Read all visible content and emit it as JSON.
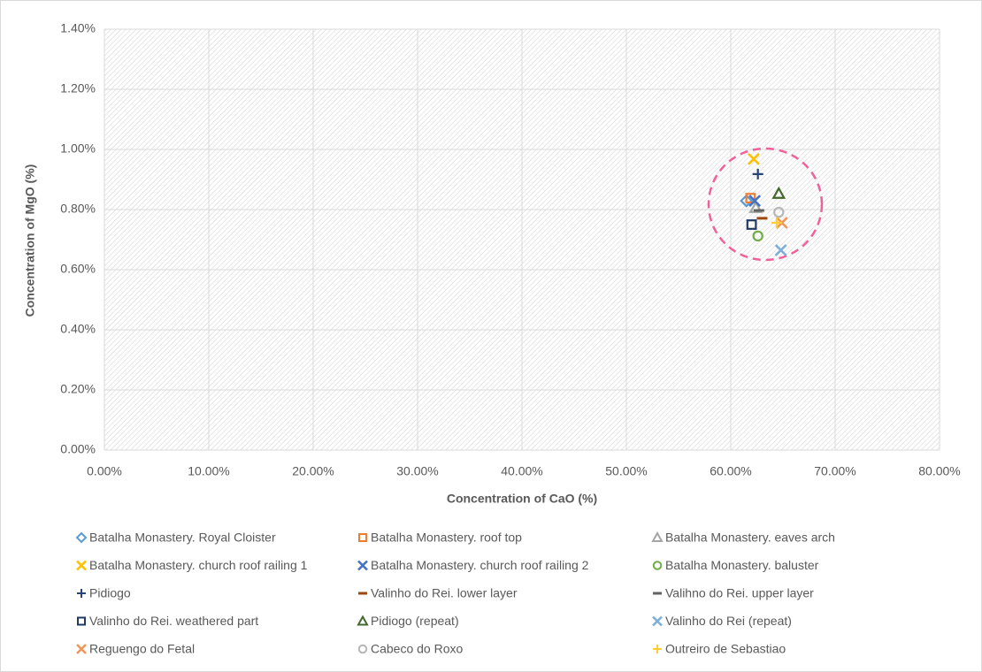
{
  "chart_data": {
    "type": "scatter",
    "xlabel": "Concentration of CaO (%)",
    "ylabel": "Concentration of MgO (%)",
    "xlim": [
      0,
      80
    ],
    "ylim": [
      0,
      1.4
    ],
    "xticks": [
      {
        "value": 0,
        "label": "0.00%"
      },
      {
        "value": 10,
        "label": "10.00%"
      },
      {
        "value": 20,
        "label": "20.00%"
      },
      {
        "value": 30,
        "label": "30.00%"
      },
      {
        "value": 40,
        "label": "40.00%"
      },
      {
        "value": 50,
        "label": "50.00%"
      },
      {
        "value": 60,
        "label": "60.00%"
      },
      {
        "value": 70,
        "label": "70.00%"
      },
      {
        "value": 80,
        "label": "80.00%"
      }
    ],
    "yticks": [
      {
        "value": 0,
        "label": "0.00%"
      },
      {
        "value": 0.2,
        "label": "0.20%"
      },
      {
        "value": 0.4,
        "label": "0.40%"
      },
      {
        "value": 0.6,
        "label": "0.60%"
      },
      {
        "value": 0.8,
        "label": "0.80%"
      },
      {
        "value": 1.0,
        "label": "1.00%"
      },
      {
        "value": 1.2,
        "label": "1.20%"
      },
      {
        "value": 1.4,
        "label": "1.40%"
      }
    ],
    "grid": true,
    "legend": "bottom",
    "series": [
      {
        "name": "Batalha Monastery. Royal Cloister",
        "color": "#5b9bd5",
        "marker": "diamond",
        "x": [
          61.5
        ],
        "y": [
          0.829
        ]
      },
      {
        "name": "Batalha Monastery. roof top",
        "color": "#ed7d31",
        "marker": "square",
        "x": [
          61.9
        ],
        "y": [
          0.838
        ]
      },
      {
        "name": "Batalha Monastery. eaves arch",
        "color": "#a5a5a5",
        "marker": "triangle",
        "x": [
          62.4
        ],
        "y": [
          0.806
        ]
      },
      {
        "name": "Batalha Monastery. church roof railing 1",
        "color": "#ffc000",
        "marker": "x",
        "x": [
          62.2
        ],
        "y": [
          0.968
        ]
      },
      {
        "name": "Batalha Monastery. church roof railing 2",
        "color": "#4472c4",
        "marker": "x",
        "x": [
          62.3
        ],
        "y": [
          0.829
        ]
      },
      {
        "name": "Batalha Monastery. baluster",
        "color": "#70ad47",
        "marker": "circle",
        "x": [
          62.6
        ],
        "y": [
          0.712
        ]
      },
      {
        "name": "Pidiogo",
        "color": "#264478",
        "marker": "plus",
        "x": [
          62.6
        ],
        "y": [
          0.918
        ]
      },
      {
        "name": "Valinho do Rei. lower layer",
        "color": "#9e480e",
        "marker": "dash",
        "x": [
          63.0
        ],
        "y": [
          0.771
        ]
      },
      {
        "name": "Valihno do Rei. upper layer",
        "color": "#636363",
        "marker": "dash",
        "x": [
          62.7
        ],
        "y": [
          0.797
        ]
      },
      {
        "name": "Valinho do Rei. weathered part",
        "color": "#1f3864",
        "marker": "square",
        "x": [
          62.0
        ],
        "y": [
          0.75
        ]
      },
      {
        "name": "Pidiogo (repeat)",
        "color": "#43682b",
        "marker": "triangle",
        "x": [
          64.6
        ],
        "y": [
          0.853
        ]
      },
      {
        "name": "Valinho do Rei (repeat)",
        "color": "#7cafdd",
        "marker": "x",
        "x": [
          64.8
        ],
        "y": [
          0.665
        ]
      },
      {
        "name": "Reguengo do Fetal",
        "color": "#f1975a",
        "marker": "x",
        "x": [
          64.9
        ],
        "y": [
          0.756
        ]
      },
      {
        "name": "Cabeco do Roxo",
        "color": "#b7b7b7",
        "marker": "circle",
        "x": [
          64.6
        ],
        "y": [
          0.791
        ]
      },
      {
        "name": "Outreiro de Sebastiao",
        "color": "#ffcd33",
        "marker": "plus",
        "x": [
          64.4
        ],
        "y": [
          0.756
        ]
      }
    ]
  }
}
